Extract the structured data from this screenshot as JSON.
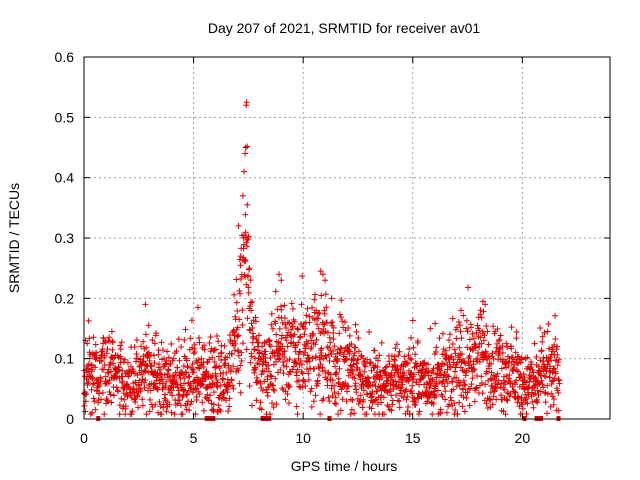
{
  "chart_data": {
    "type": "scatter",
    "title": "Day 207 of 2021, SRMTID for receiver av01",
    "xlabel": "GPS time / hours",
    "ylabel": "SRMTID / TECUs",
    "xlim": [
      0,
      24
    ],
    "ylim": [
      0,
      0.6
    ],
    "grid": true,
    "marker": "+",
    "color": "#e00000",
    "xticks": [
      0,
      5,
      10,
      15,
      20
    ],
    "xtick_labels": [
      "0",
      "5",
      "10",
      "15",
      "20"
    ],
    "yticks": [
      0,
      0.1,
      0.2,
      0.3,
      0.4,
      0.5,
      0.6
    ],
    "ytick_labels": [
      "0",
      "0.1",
      "0.2",
      "0.3",
      "0.4",
      "0.5",
      "0.6"
    ],
    "data_extent_hours": [
      0,
      21.7
    ],
    "baseline_markers_x": [
      0.65,
      5.6,
      5.75,
      5.9,
      8.15,
      8.25,
      8.35,
      8.45,
      11.2,
      20.1,
      20.65,
      20.75,
      20.85,
      21.65
    ],
    "baseline_level": [
      [
        0.0,
        0.075
      ],
      [
        0.5,
        0.075
      ],
      [
        1.0,
        0.085
      ],
      [
        1.5,
        0.07
      ],
      [
        2.0,
        0.05
      ],
      [
        2.5,
        0.075
      ],
      [
        3.0,
        0.08
      ],
      [
        3.5,
        0.065
      ],
      [
        4.0,
        0.06
      ],
      [
        4.5,
        0.065
      ],
      [
        5.0,
        0.07
      ],
      [
        5.5,
        0.065
      ],
      [
        6.0,
        0.07
      ],
      [
        6.5,
        0.075
      ],
      [
        6.8,
        0.1
      ],
      [
        7.0,
        0.13
      ],
      [
        7.2,
        0.2
      ],
      [
        7.4,
        0.28
      ],
      [
        7.6,
        0.15
      ],
      [
        7.8,
        0.09
      ],
      [
        8.0,
        0.08
      ],
      [
        8.5,
        0.095
      ],
      [
        9.0,
        0.12
      ],
      [
        9.5,
        0.11
      ],
      [
        10.0,
        0.1
      ],
      [
        10.5,
        0.11
      ],
      [
        11.0,
        0.115
      ],
      [
        11.5,
        0.09
      ],
      [
        12.0,
        0.08
      ],
      [
        12.5,
        0.075
      ],
      [
        13.0,
        0.06
      ],
      [
        13.5,
        0.055
      ],
      [
        14.0,
        0.065
      ],
      [
        14.5,
        0.07
      ],
      [
        15.0,
        0.065
      ],
      [
        15.5,
        0.06
      ],
      [
        16.0,
        0.065
      ],
      [
        16.5,
        0.07
      ],
      [
        17.0,
        0.075
      ],
      [
        17.5,
        0.09
      ],
      [
        18.0,
        0.1
      ],
      [
        18.5,
        0.09
      ],
      [
        19.0,
        0.08
      ],
      [
        19.5,
        0.075
      ],
      [
        20.0,
        0.06
      ],
      [
        20.5,
        0.055
      ],
      [
        21.0,
        0.075
      ],
      [
        21.5,
        0.075
      ],
      [
        21.7,
        0.075
      ]
    ],
    "peaks": [
      {
        "x": 2.8,
        "y": 0.19
      },
      {
        "x": 5.2,
        "y": 0.185
      },
      {
        "x": 7.05,
        "y": 0.32
      },
      {
        "x": 7.15,
        "y": 0.27
      },
      {
        "x": 7.25,
        "y": 0.37
      },
      {
        "x": 7.3,
        "y": 0.41
      },
      {
        "x": 7.35,
        "y": 0.44
      },
      {
        "x": 7.38,
        "y": 0.45
      },
      {
        "x": 7.4,
        "y": 0.52
      },
      {
        "x": 7.42,
        "y": 0.525
      },
      {
        "x": 7.45,
        "y": 0.355
      },
      {
        "x": 7.5,
        "y": 0.3
      },
      {
        "x": 7.55,
        "y": 0.25
      },
      {
        "x": 8.9,
        "y": 0.24
      },
      {
        "x": 9.0,
        "y": 0.23
      },
      {
        "x": 10.8,
        "y": 0.245
      },
      {
        "x": 10.9,
        "y": 0.24
      },
      {
        "x": 11.0,
        "y": 0.23
      },
      {
        "x": 11.3,
        "y": 0.2
      },
      {
        "x": 17.2,
        "y": 0.18
      },
      {
        "x": 18.2,
        "y": 0.195
      },
      {
        "x": 18.3,
        "y": 0.19
      }
    ]
  }
}
